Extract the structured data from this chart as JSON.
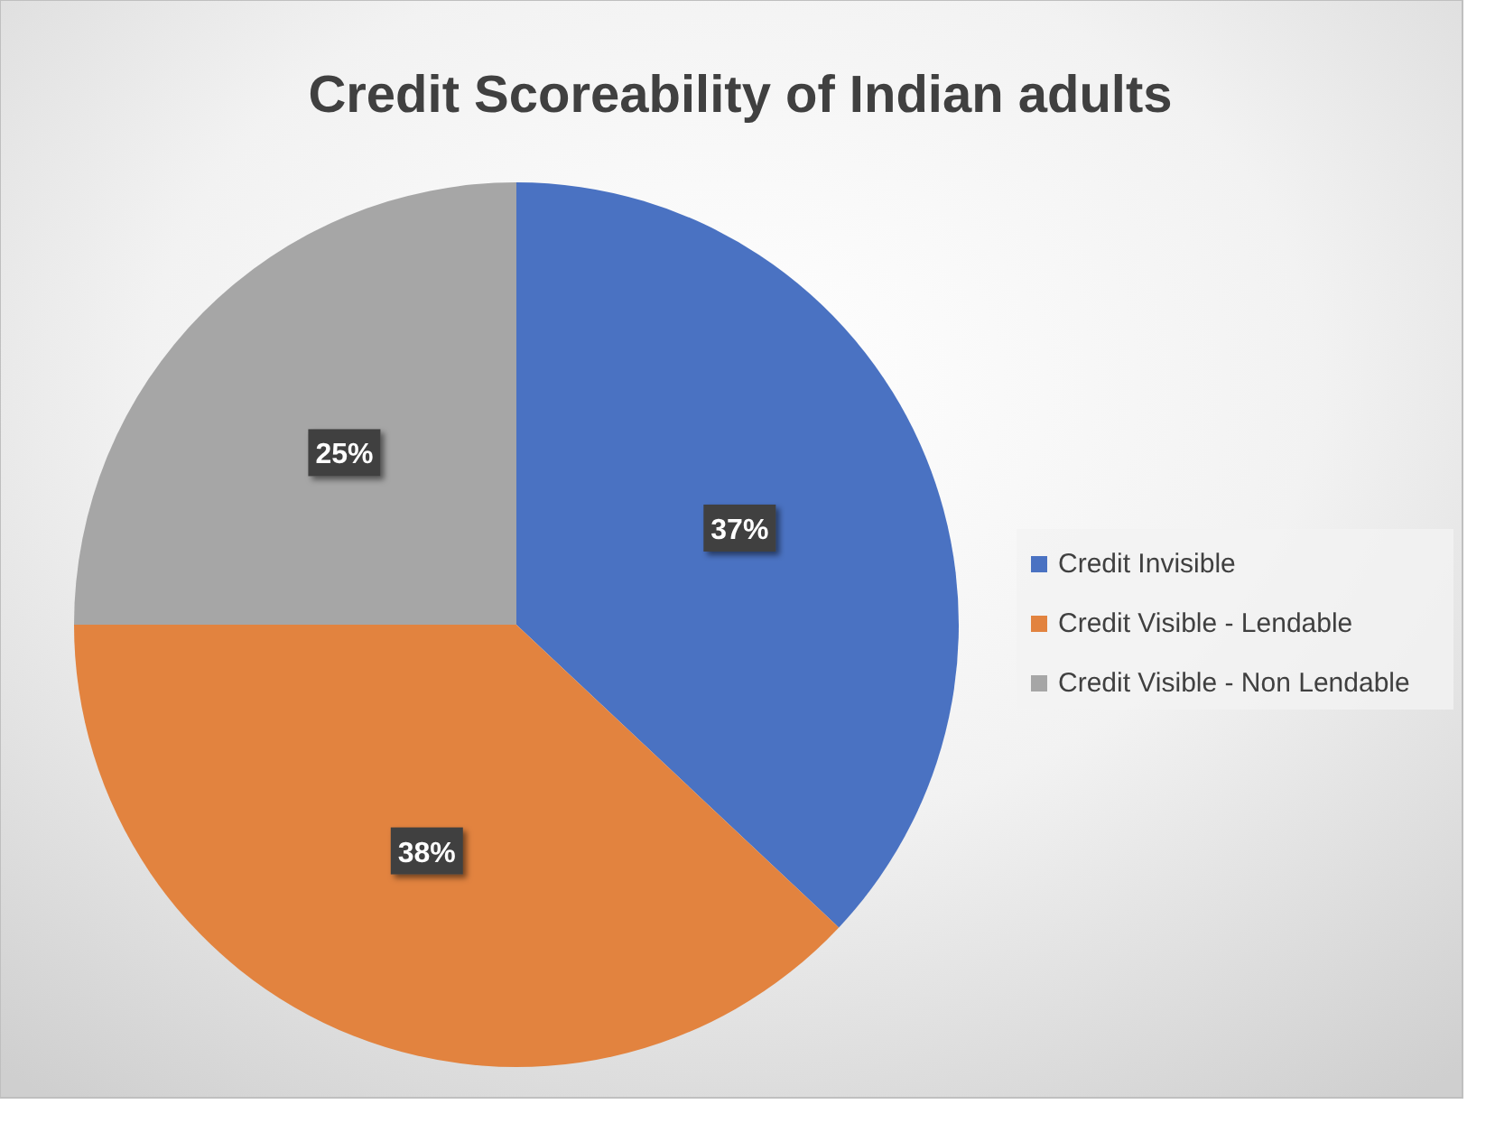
{
  "chart_data": {
    "type": "pie",
    "title": "Credit Scoreability of Indian adults",
    "categories": [
      "Credit Invisible",
      "Credit Visible - Lendable",
      "Credit Visible - Non Lendable"
    ],
    "values": [
      37,
      38,
      25
    ],
    "colors": [
      "#4a72c2",
      "#e2833f",
      "#a6a6a6"
    ],
    "value_labels": [
      "37%",
      "38%",
      "25%"
    ],
    "legend": "right"
  }
}
